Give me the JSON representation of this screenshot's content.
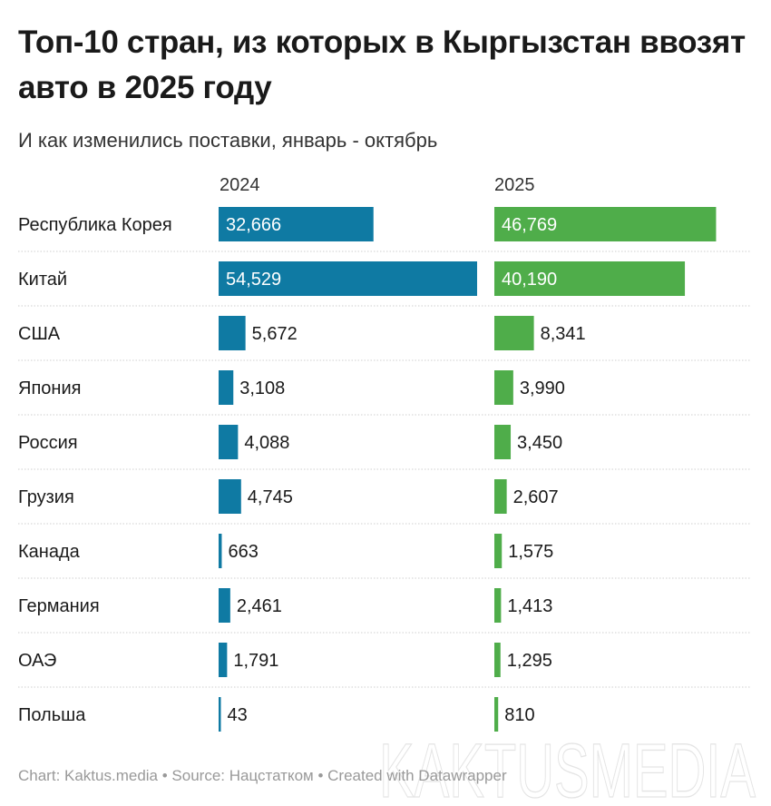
{
  "title": "Топ-10 стран, из которых в Кыргызстан ввозят авто в 2025 году",
  "subtitle": "И как изменились поставки, январь - октябрь",
  "footer": "Chart: Kaktus.media • Source: Нацстатком • Created with Datawrapper",
  "watermark": "KAKTUSMEDIA",
  "chart_data": {
    "type": "bar",
    "orientation": "horizontal",
    "layout": "split-columns",
    "categories": [
      "Республика Корея",
      "Китай",
      "США",
      "Япония",
      "Россия",
      "Грузия",
      "Канада",
      "Германия",
      "ОАЭ",
      "Польша"
    ],
    "series": [
      {
        "name": "2024",
        "color": "#0f7aa3",
        "values": [
          32666,
          54529,
          5672,
          3108,
          4088,
          4745,
          663,
          2461,
          1791,
          43
        ],
        "labels": [
          "32,666",
          "54,529",
          "5,672",
          "3,108",
          "4,088",
          "4,745",
          "663",
          "2,461",
          "1,791",
          "43"
        ]
      },
      {
        "name": "2025",
        "color": "#4fad4a",
        "values": [
          46769,
          40190,
          8341,
          3990,
          3450,
          2607,
          1575,
          1413,
          1295,
          810
        ],
        "labels": [
          "46,769",
          "40,190",
          "8,341",
          "3,990",
          "3,450",
          "2,607",
          "1,575",
          "1,413",
          "1,295",
          "810"
        ]
      }
    ],
    "grid": false
  }
}
